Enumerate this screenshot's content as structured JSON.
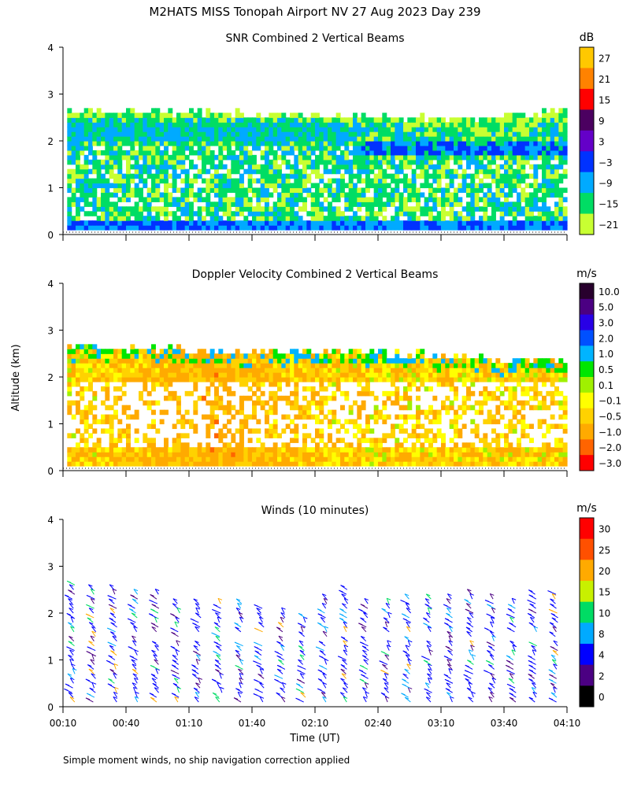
{
  "header": {
    "title": "M2HATS MISS Tonopah Airport NV  27 Aug 2023 Day 239"
  },
  "footer": {
    "note": "Simple moment winds, no ship navigation correction applied"
  },
  "axes": {
    "ylabel": "Altitude (km)",
    "xlabel": "Time (UT)",
    "xticks": [
      "00:10",
      "00:40",
      "01:10",
      "01:40",
      "02:10",
      "02:40",
      "03:10",
      "03:40",
      "04:10"
    ],
    "yticks": [
      "0",
      "1",
      "2",
      "3",
      "4"
    ],
    "ylim": [
      0,
      4
    ],
    "xlim_minutes": [
      10,
      250
    ]
  },
  "chart_data": [
    {
      "type": "heatmap",
      "title": "SNR Combined 2 Vertical Beams",
      "colorbar_unit": "dB",
      "colorbar_labels": [
        "27",
        "21",
        "15",
        "9",
        "3",
        "−3",
        "−9",
        "−15",
        "−21"
      ],
      "colorbar_colors": [
        "#ffc800",
        "#ff8200",
        "#ff0000",
        "#4b0060",
        "#6400c8",
        "#0032ff",
        "#00aaff",
        "#00dd64",
        "#c8ff32"
      ],
      "description_points": [
        {
          "time_min": 15,
          "top_km": 2.6,
          "boundary_dbz_band_km": [
            2.0,
            2.5
          ]
        },
        {
          "time_min": 150,
          "top_km": 2.5,
          "boundary_dbz_band_km": [
            2.0,
            2.4
          ]
        },
        {
          "time_min": 200,
          "top_km": 2.4,
          "boundary_dbz_band_km": [
            1.7,
            2.0
          ]
        },
        {
          "time_min": 245,
          "top_km": 2.6,
          "boundary_dbz_band_km": [
            1.7,
            2.0
          ]
        }
      ]
    },
    {
      "type": "heatmap",
      "title": "Doppler Velocity Combined 2 Vertical Beams",
      "colorbar_unit": "m/s",
      "colorbar_labels": [
        "10.0",
        "5.0",
        "3.0",
        "2.0",
        "1.0",
        "0.5",
        "0.1",
        "−0.1",
        "−0.5",
        "−1.0",
        "−2.0",
        "−3.0"
      ],
      "colorbar_colors": [
        "#28002d",
        "#4b0082",
        "#2800e6",
        "#0050ff",
        "#00b4ff",
        "#00e600",
        "#a0f000",
        "#ffff00",
        "#ffd200",
        "#ffaa00",
        "#ff6400",
        "#ff0000"
      ],
      "description_points": [
        {
          "time_min": 20,
          "top_km": 2.6,
          "dominant_ms": -0.5
        },
        {
          "time_min": 80,
          "top_km": 2.5,
          "dominant_ms": -1.0
        },
        {
          "time_min": 150,
          "top_km": 2.5,
          "dominant_ms": -0.5
        },
        {
          "time_min": 220,
          "top_km": 2.3,
          "dominant_ms": -0.5
        }
      ]
    },
    {
      "type": "scatter",
      "title": "Winds (10 minutes)",
      "colorbar_unit": "m/s",
      "colorbar_labels": [
        "30",
        "25",
        "20",
        "15",
        "10",
        "8",
        "4",
        "2",
        "0"
      ],
      "colorbar_colors": [
        "#ff0000",
        "#ff5000",
        "#ffaa00",
        "#c8f000",
        "#00dc64",
        "#00aaff",
        "#0000ff",
        "#4b0082",
        "#000000"
      ],
      "profile_times_min": [
        15,
        25,
        35,
        45,
        55,
        65,
        75,
        85,
        95,
        105,
        115,
        125,
        135,
        145,
        155,
        165,
        175,
        185,
        195,
        205,
        215,
        225,
        235,
        245
      ],
      "profile_top_km": [
        2.7,
        2.6,
        2.6,
        2.5,
        2.5,
        2.3,
        2.3,
        2.3,
        2.3,
        2.2,
        2.1,
        2.0,
        2.4,
        2.6,
        2.3,
        2.3,
        2.4,
        2.4,
        2.4,
        2.5,
        2.4,
        2.3,
        2.5,
        2.5
      ],
      "typical_speed_ms": 8
    }
  ]
}
